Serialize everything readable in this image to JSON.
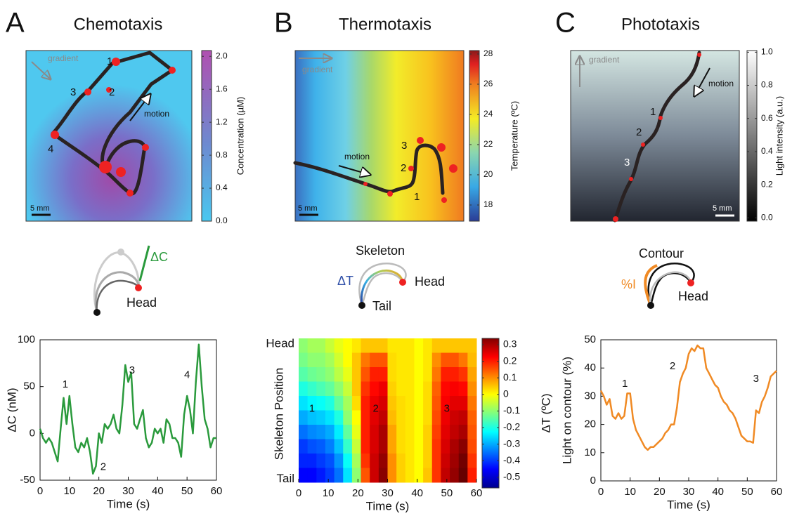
{
  "panels": [
    {
      "label": "A",
      "title": "Chemotaxis",
      "map": {
        "gradient": "gradient",
        "motion": "motion",
        "scale": "5 mm",
        "annotations": [
          "1",
          "2",
          "3",
          "4"
        ],
        "colorbar": {
          "label": "Concentration (µM)",
          "lim": [
            0,
            2.07
          ],
          "ticks": [
            {
              "value": 0,
              "label": "0.0"
            },
            0.4,
            0.8,
            1.2,
            1.6,
            {
              "value": 2,
              "label": "2.0"
            }
          ]
        }
      },
      "schematic": {
        "labels": [
          "ΔC",
          "Head"
        ]
      }
    },
    {
      "label": "B",
      "title": "Thermotaxis",
      "map": {
        "gradient": "gradient",
        "motion": "motion",
        "scale": "5 mm",
        "annotations": [
          "3",
          "2",
          "1"
        ],
        "colorbar": {
          "label": "Temperature (ºC)",
          "lim": [
            16.93,
            28.23
          ],
          "ticks": [
            18,
            20,
            22,
            24,
            26,
            28
          ]
        }
      },
      "schematic": {
        "labels": [
          "Skeleton",
          "ΔT",
          "Head",
          "Tail"
        ]
      }
    },
    {
      "label": "C",
      "title": "Phototaxis",
      "map": {
        "gradient": "gradient",
        "motion": "motion",
        "scale": "5 mm",
        "annotations": [
          "1",
          "2",
          "3"
        ],
        "colorbar": {
          "label": "Light intensity (a.u.)",
          "lim": [
            -0.02,
            1.01
          ],
          "ticks": [
            {
              "value": 0,
              "label": "0.0"
            },
            0.2,
            0.4,
            0.6,
            0.8,
            {
              "value": 1,
              "label": "1.0"
            }
          ]
        }
      },
      "schematic": {
        "labels": [
          "Contour",
          "%I",
          "Head"
        ]
      }
    }
  ],
  "chart_data": [
    {
      "type": "line",
      "xlabel": "Time (s)",
      "ylabel": "ΔC  (nM)",
      "color": "#2a9a3c",
      "x": [
        0,
        1,
        2,
        3,
        4,
        5,
        6,
        7,
        8,
        9,
        10,
        11,
        12,
        13,
        14,
        15,
        16,
        17,
        18,
        19,
        20,
        21,
        22,
        23,
        24,
        25,
        26,
        27,
        28,
        29,
        30,
        31,
        32,
        33,
        34,
        35,
        36,
        37,
        38,
        39,
        40,
        41,
        42,
        43,
        44,
        45,
        46,
        47,
        48,
        49,
        50,
        51,
        52,
        53,
        54,
        55,
        56,
        57,
        58,
        59,
        60
      ],
      "values": [
        5,
        -5,
        -10,
        -5,
        -10,
        -20,
        -30,
        5,
        38,
        10,
        40,
        10,
        -15,
        -20,
        -10,
        -15,
        -5,
        -20,
        -43,
        -35,
        0,
        -10,
        10,
        5,
        10,
        20,
        5,
        0,
        30,
        73,
        55,
        65,
        10,
        5,
        15,
        25,
        -5,
        -15,
        -10,
        5,
        0,
        5,
        -10,
        15,
        10,
        -5,
        -5,
        -10,
        -25,
        20,
        40,
        25,
        0,
        55,
        95,
        50,
        15,
        5,
        -15,
        -5,
        -5
      ],
      "xlim": [
        0,
        60
      ],
      "ylim": [
        -50,
        100
      ],
      "xticks": [
        0,
        10,
        20,
        30,
        40,
        50,
        60
      ],
      "yticks": [
        -50,
        0,
        50,
        100
      ],
      "annotations": [
        "1",
        "2",
        "3",
        "4"
      ]
    },
    {
      "type": "heatmap",
      "xlabel": "Time (s)",
      "ylabel": "Skeleton Position",
      "categories": [
        "Head",
        null,
        null,
        null,
        null,
        null,
        null,
        null,
        null,
        "Tail"
      ],
      "bins": [
        0,
        3,
        6,
        9,
        12,
        15,
        18,
        21,
        24,
        27,
        30,
        33,
        36,
        39,
        42,
        45,
        48,
        51,
        54,
        57,
        60
      ],
      "values": [
        [
          -0.1,
          -0.08,
          -0.08,
          -0.05,
          -0.02,
          0,
          0.02,
          0.05,
          0.05,
          0.05,
          0.02,
          0.02,
          0.02,
          0,
          0.02,
          0.05,
          0.05,
          0.05,
          0.05,
          0.05
        ],
        [
          -0.12,
          -0.1,
          -0.1,
          -0.08,
          -0.04,
          0,
          0.05,
          0.12,
          0.15,
          0.15,
          0.03,
          0.02,
          0.02,
          0,
          0.02,
          0.1,
          0.15,
          0.15,
          0.12,
          0.06
        ],
        [
          -0.15,
          -0.13,
          -0.12,
          -0.1,
          -0.06,
          -0.02,
          0.05,
          0.15,
          0.2,
          0.2,
          0.03,
          0.02,
          0.02,
          0,
          0.02,
          0.12,
          0.2,
          0.2,
          0.18,
          0.08
        ],
        [
          -0.2,
          -0.18,
          -0.16,
          -0.14,
          -0.1,
          -0.05,
          0.05,
          0.18,
          0.22,
          0.24,
          0.04,
          0.02,
          0.02,
          0,
          0.03,
          0.14,
          0.22,
          0.23,
          0.22,
          0.1
        ],
        [
          -0.25,
          -0.23,
          -0.22,
          -0.2,
          -0.14,
          -0.08,
          0.03,
          0.2,
          0.24,
          0.26,
          0.05,
          0.03,
          0.02,
          0,
          0.03,
          0.15,
          0.23,
          0.25,
          0.25,
          0.12
        ],
        [
          -0.3,
          -0.28,
          -0.27,
          -0.25,
          -0.2,
          -0.1,
          0,
          0.2,
          0.25,
          0.28,
          0.06,
          0.03,
          0.02,
          0,
          0.03,
          0.16,
          0.24,
          0.27,
          0.28,
          0.14
        ],
        [
          -0.35,
          -0.33,
          -0.32,
          -0.3,
          -0.24,
          -0.14,
          -0.02,
          0.2,
          0.26,
          0.3,
          0.08,
          0.03,
          0.02,
          0,
          0.04,
          0.17,
          0.25,
          0.28,
          0.3,
          0.15
        ],
        [
          -0.4,
          -0.38,
          -0.37,
          -0.34,
          -0.28,
          -0.18,
          -0.05,
          0.2,
          0.26,
          0.3,
          0.08,
          0.03,
          0.02,
          0,
          0.04,
          0.18,
          0.26,
          0.3,
          0.33,
          0.16
        ],
        [
          -0.42,
          -0.42,
          -0.4,
          -0.38,
          -0.32,
          -0.22,
          -0.08,
          0.18,
          0.27,
          0.32,
          0.1,
          0.04,
          0.02,
          0,
          0.04,
          0.18,
          0.27,
          0.31,
          0.35,
          0.18
        ],
        [
          -0.45,
          -0.45,
          -0.43,
          -0.4,
          -0.35,
          -0.25,
          -0.1,
          0.15,
          0.27,
          0.33,
          0.1,
          0.04,
          0.02,
          0,
          0.05,
          0.18,
          0.28,
          0.32,
          0.36,
          0.2
        ]
      ],
      "xlim": [
        0,
        60
      ],
      "xticks": [
        0,
        10,
        20,
        30,
        40,
        50,
        60
      ],
      "zlim": [
        -0.564,
        0.338
      ],
      "zticks": [
        -0.5,
        -0.4,
        -0.3,
        -0.2,
        -0.1,
        0,
        0.1,
        0.2,
        0.3
      ],
      "colorbar_label": "ΔT (ºC)",
      "annotations": [
        "1",
        "2",
        "3"
      ]
    },
    {
      "type": "line",
      "xlabel": "Time (s)",
      "ylabel": "Light on contour (%)",
      "color": "#f08a24",
      "x": [
        0,
        1,
        2,
        3,
        4,
        5,
        6,
        7,
        8,
        9,
        10,
        11,
        12,
        13,
        14,
        15,
        16,
        17,
        18,
        19,
        20,
        21,
        22,
        23,
        24,
        25,
        26,
        27,
        28,
        29,
        30,
        31,
        32,
        33,
        34,
        35,
        36,
        37,
        38,
        39,
        40,
        41,
        42,
        43,
        44,
        45,
        46,
        47,
        48,
        49,
        50,
        51,
        52,
        53,
        54,
        55,
        56,
        57,
        58,
        59,
        60
      ],
      "values": [
        32,
        30,
        27,
        29,
        23,
        22,
        24,
        22,
        23,
        31,
        31,
        22,
        18,
        16,
        14,
        12,
        11,
        12,
        12,
        13,
        14,
        15,
        17,
        18,
        20,
        20,
        26,
        35,
        38,
        40,
        45,
        47,
        46,
        48,
        47,
        47,
        40,
        38,
        36,
        34,
        33,
        30,
        28,
        27,
        25,
        24,
        22,
        19,
        16,
        15,
        14,
        14,
        13.5,
        25,
        24,
        28,
        30,
        33,
        37,
        38,
        39
      ],
      "xlim": [
        0,
        60
      ],
      "ylim": [
        0,
        50
      ],
      "xticks": [
        0,
        10,
        20,
        30,
        40,
        50,
        60
      ],
      "yticks": [
        0,
        10,
        20,
        30,
        40,
        50
      ],
      "annotations": [
        "1",
        "2",
        "3"
      ]
    }
  ]
}
